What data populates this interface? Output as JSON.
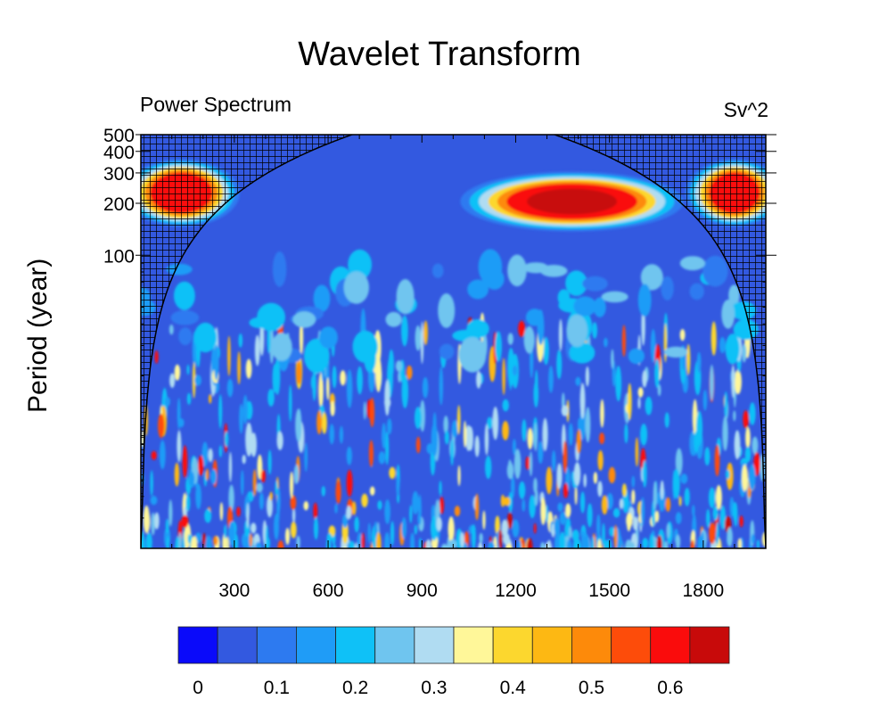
{
  "chart_data": {
    "type": "heatmap",
    "title": "Wavelet Transform",
    "left_subtitle": "Power Spectrum",
    "right_subtitle": "Sv^2",
    "xlabel": "",
    "ylabel": "Period (year)",
    "xlim": [
      1,
      2000
    ],
    "ylim": [
      2,
      500
    ],
    "yscale": "log",
    "x_ticks": [
      300,
      600,
      900,
      1200,
      1500,
      1800
    ],
    "x_tick_labels": [
      "300",
      "600",
      "900",
      "1200",
      "1500",
      "1800"
    ],
    "y_ticks": [
      500,
      400,
      300,
      200,
      100
    ],
    "y_tick_labels": [
      "500",
      "400",
      "300",
      "200",
      "100"
    ],
    "cone_of_influence": "hatched",
    "colorbar": {
      "levels": [
        0,
        0.05,
        0.1,
        0.15,
        0.2,
        0.25,
        0.3,
        0.35,
        0.4,
        0.45,
        0.5,
        0.55,
        0.6,
        0.65
      ],
      "colors": [
        "#0a0afa",
        "#3359e0",
        "#2d7af0",
        "#1f9cf7",
        "#0fc1f7",
        "#6fc5ef",
        "#b0dcf2",
        "#fff799",
        "#fcd72e",
        "#fdb813",
        "#fd8a0a",
        "#fd4c0a",
        "#fa0c0c",
        "#c80a0a"
      ],
      "tick_values": [
        0,
        0.1,
        0.2,
        0.3,
        0.4,
        0.5,
        0.6
      ],
      "tick_labels": [
        "0",
        "0.1",
        "0.2",
        "0.3",
        "0.4",
        "0.5",
        "0.6"
      ]
    },
    "peak_regions": [
      {
        "x_start": 1080,
        "x_end": 1680,
        "period_min": 150,
        "period_max": 280,
        "power": 0.65
      },
      {
        "x_start": 1,
        "x_end": 260,
        "period_min": 160,
        "period_max": 330,
        "power": 0.6
      },
      {
        "x_start": 1800,
        "x_end": 2000,
        "period_min": 160,
        "period_max": 330,
        "power": 0.6
      }
    ]
  }
}
